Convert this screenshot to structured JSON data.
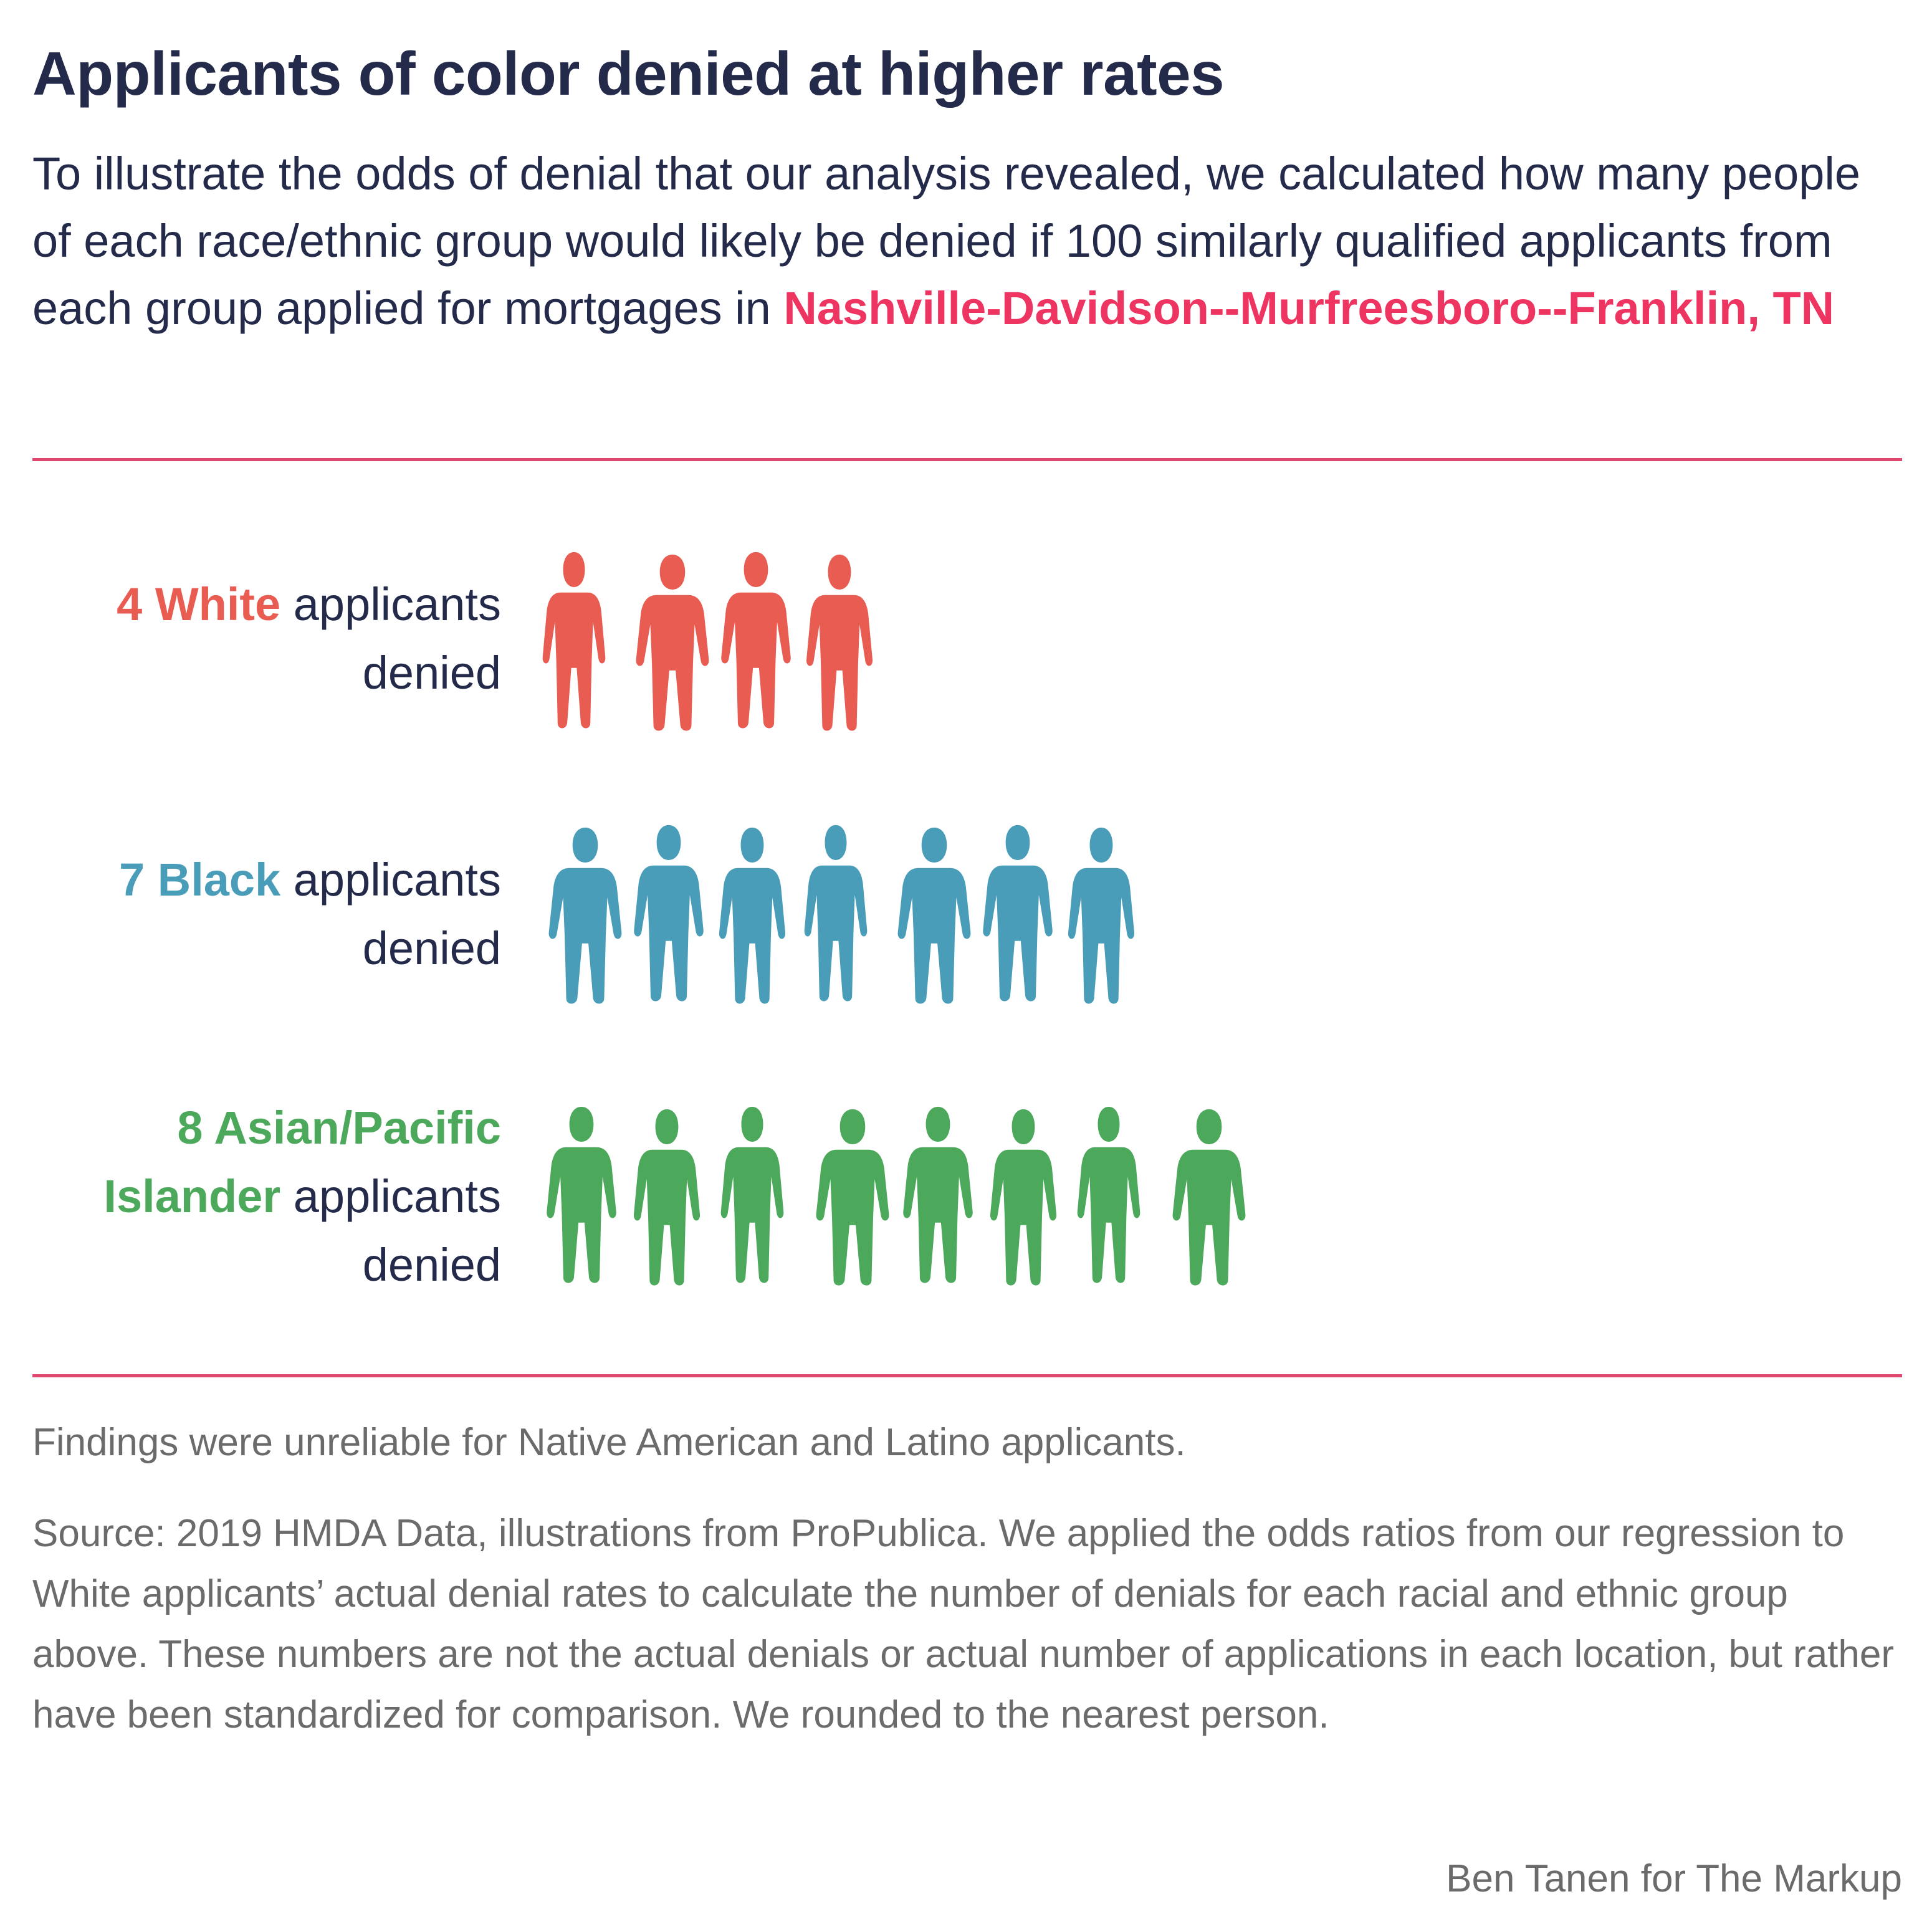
{
  "title": "Applicants of color denied at higher rates",
  "subtitle": {
    "text": "To illustrate the odds of denial that our analysis revealed, we calculated how many people of each race/ethnic group would likely be denied if 100 similarly qualified applicants from each group applied for mortgages in ",
    "place": "Nashville-Davidson--Murfreesboro--Franklin, TN"
  },
  "colors": {
    "title": "#232a4a",
    "accent": "#ee3460",
    "rule": "#e0476e",
    "note": "#6b6b6b"
  },
  "chart_data": {
    "type": "pictograph",
    "unit": "applicants denied per 100 similarly qualified applicants",
    "rows": [
      {
        "count_label": "4",
        "group_label": "White",
        "suffix_line1": " applicants",
        "suffix_line2": "denied",
        "value": 4,
        "color": "#e85c52",
        "icon": "person-silhouette-icon"
      },
      {
        "count_label": "7",
        "group_label": "Black",
        "suffix_line1": " applicants",
        "suffix_line2": "denied",
        "value": 7,
        "color": "#4a9db8",
        "icon": "person-silhouette-icon"
      },
      {
        "count_label": "8",
        "group_label_line1": "Asian/Pacific",
        "group_label_line2": "Islander",
        "suffix_line2": " applicants",
        "suffix_line3": "denied",
        "value": 8,
        "color": "#4ca85a",
        "icon": "person-silhouette-icon"
      }
    ]
  },
  "note": "Findings were unreliable for Native American and Latino applicants.",
  "source": "Source: 2019 HMDA Data, illustrations from ProPublica. We applied the odds ratios from our regression to White applicants’ actual denial rates to calculate the number of denials for each racial and ethnic group above. These numbers are not the actual denials or actual number of applications in each location, but rather have been standardized for comparison. We rounded to the nearest person.",
  "credit": "Ben Tanen for The Markup"
}
